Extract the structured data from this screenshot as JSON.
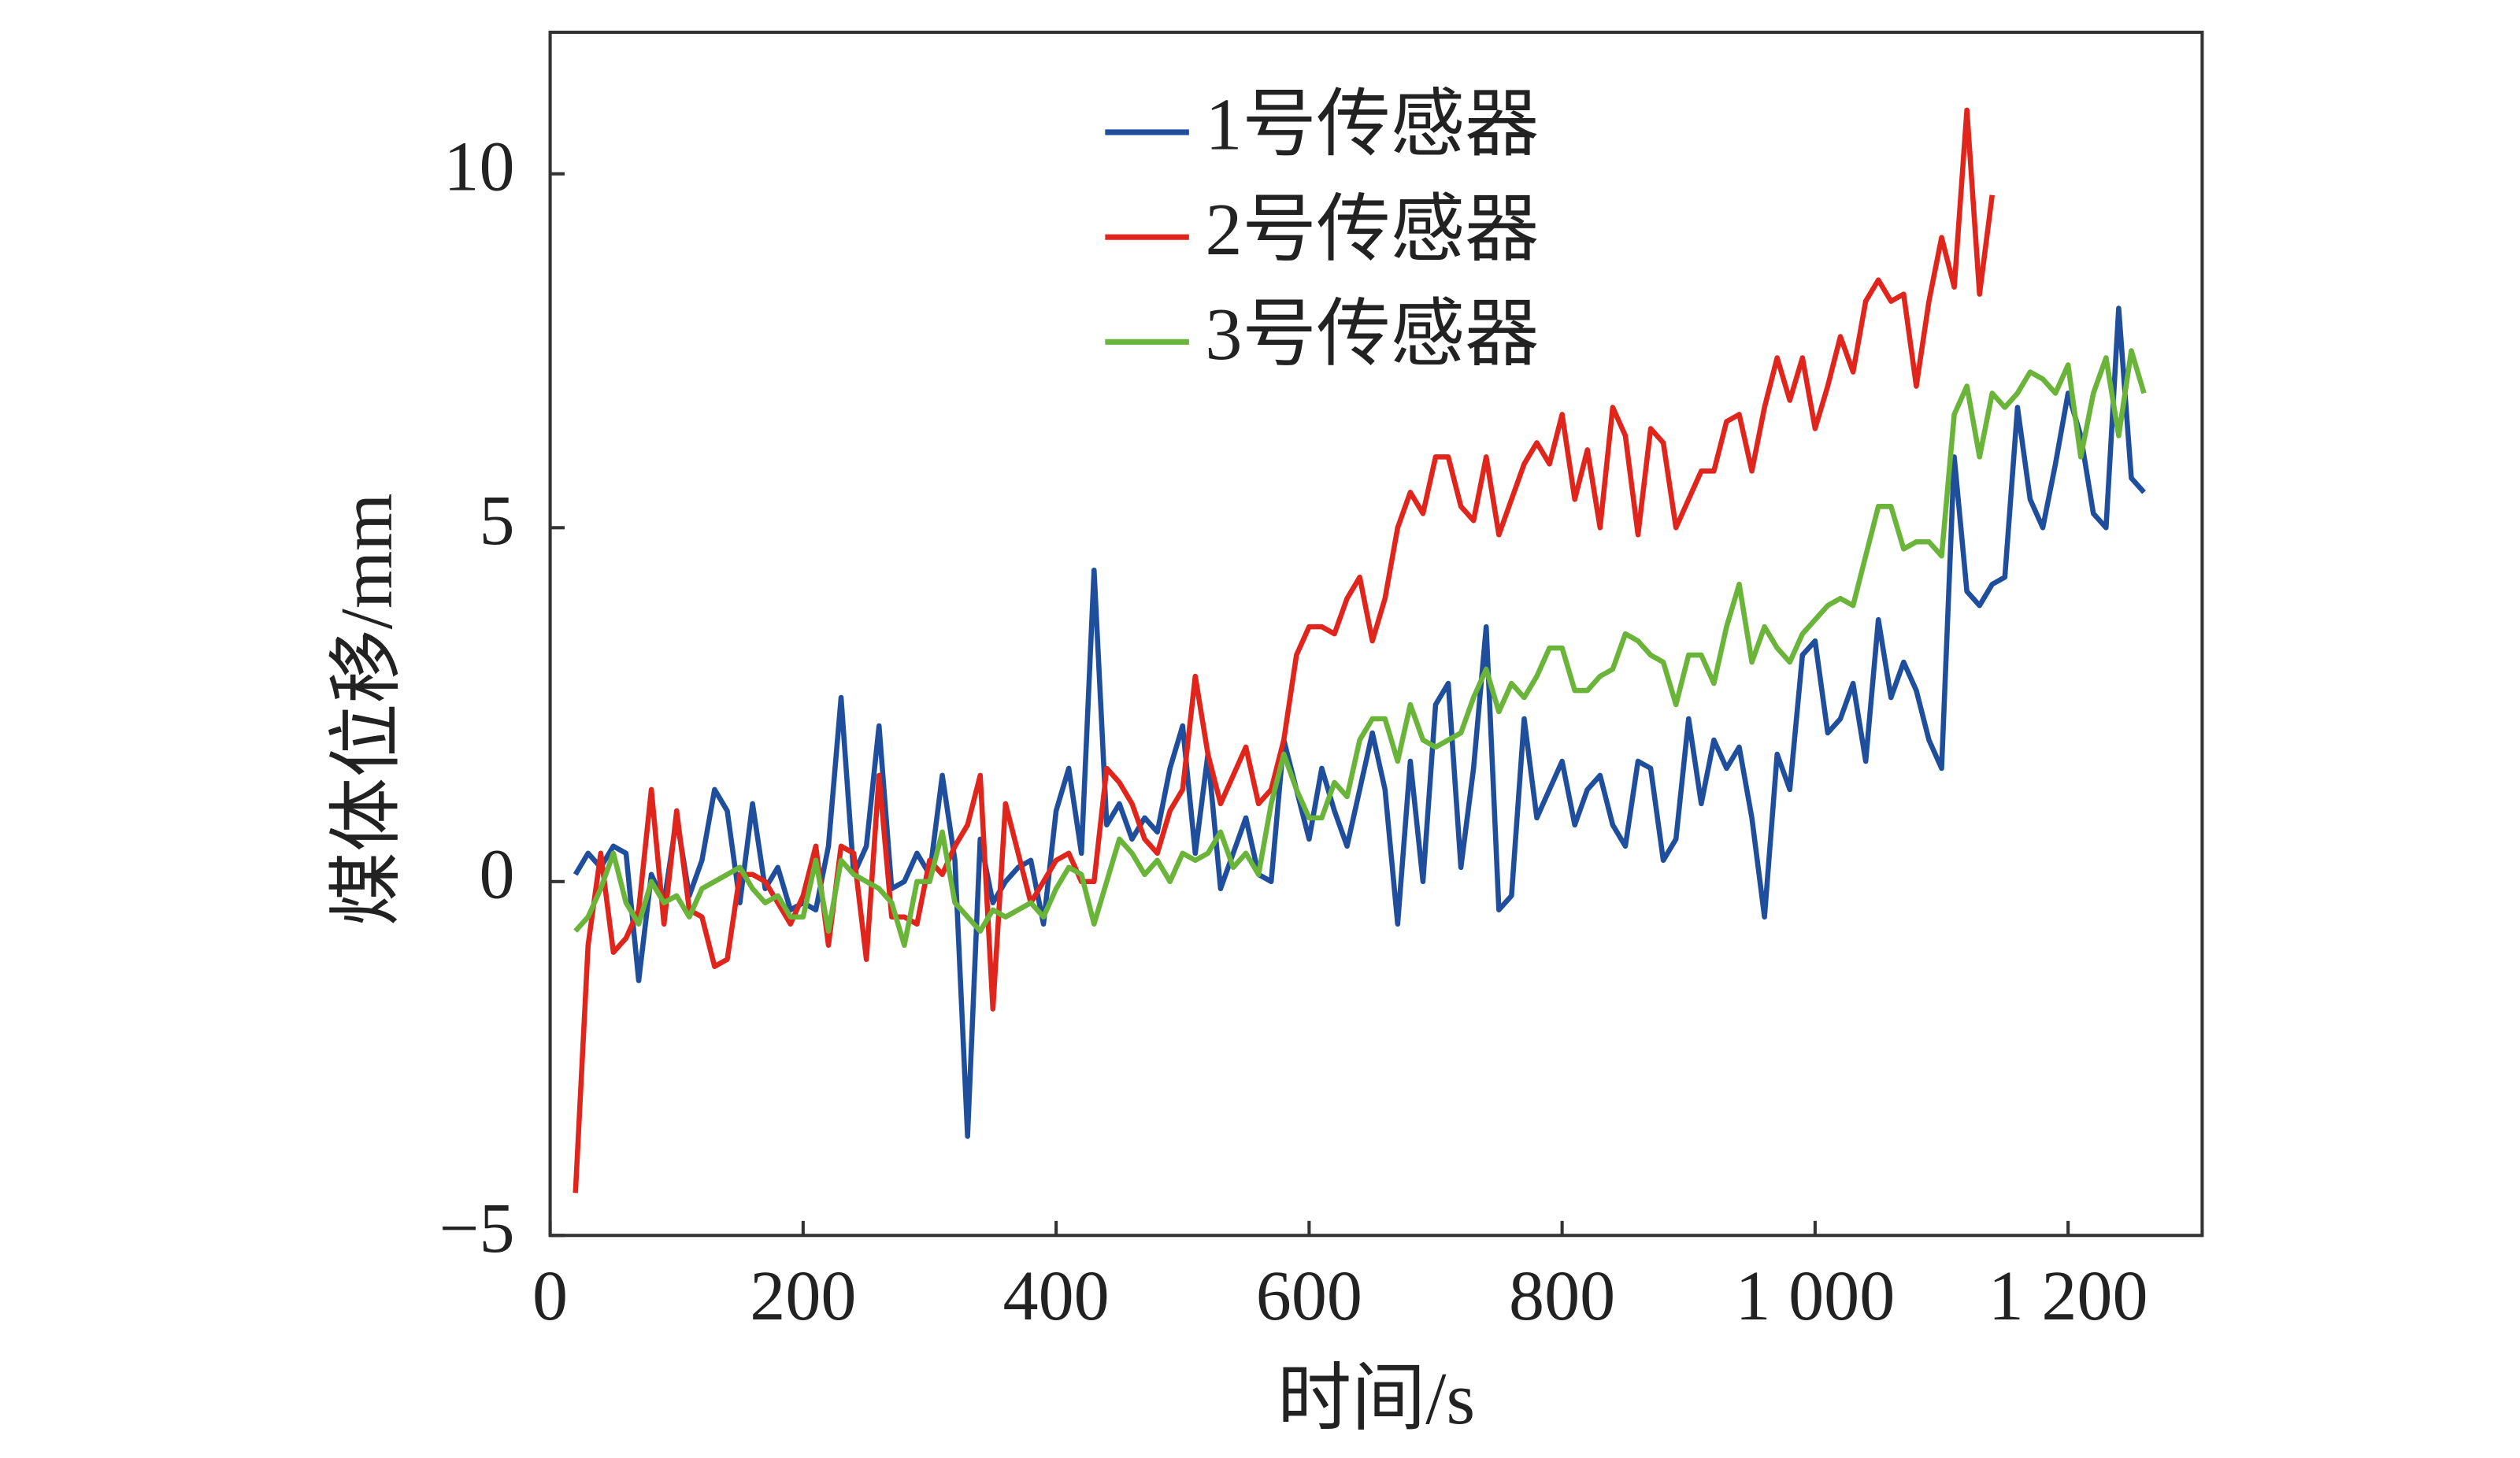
{
  "chart_data": {
    "type": "line",
    "x_label": "时间/s",
    "y_label": "煤体位移/mm",
    "x": [
      20,
      30,
      40,
      50,
      60,
      70,
      80,
      90,
      100,
      110,
      120,
      130,
      140,
      150,
      160,
      170,
      180,
      190,
      200,
      210,
      220,
      230,
      240,
      250,
      260,
      270,
      280,
      290,
      300,
      310,
      320,
      330,
      340,
      350,
      360,
      370,
      380,
      390,
      400,
      410,
      420,
      430,
      440,
      450,
      460,
      470,
      480,
      490,
      500,
      510,
      520,
      530,
      540,
      550,
      560,
      570,
      580,
      590,
      600,
      610,
      620,
      630,
      640,
      650,
      660,
      670,
      680,
      690,
      700,
      710,
      720,
      730,
      740,
      750,
      760,
      770,
      780,
      790,
      800,
      810,
      820,
      830,
      840,
      850,
      860,
      870,
      880,
      890,
      900,
      910,
      920,
      930,
      940,
      950,
      960,
      970,
      980,
      990,
      1000,
      1010,
      1020,
      1030,
      1040,
      1050,
      1060,
      1070,
      1080,
      1090,
      1100,
      1110,
      1120,
      1130,
      1140,
      1150,
      1160,
      1170,
      1180,
      1190,
      1200,
      1210,
      1220,
      1230,
      1240,
      1250,
      1260
    ],
    "series": [
      {
        "name": "1号传感器",
        "color": "#1f4e9c",
        "values": [
          0.1,
          0.4,
          0.2,
          0.5,
          0.4,
          -1.4,
          0.1,
          -0.3,
          0.9,
          -0.2,
          0.3,
          1.3,
          1.0,
          -0.3,
          1.1,
          -0.1,
          0.2,
          -0.4,
          -0.3,
          -0.4,
          0.5,
          2.6,
          0.1,
          0.5,
          2.2,
          -0.1,
          0.0,
          0.4,
          0.1,
          1.5,
          0.3,
          -3.6,
          0.6,
          -0.3,
          0.0,
          0.2,
          0.3,
          -0.6,
          1.0,
          1.6,
          0.4,
          4.4,
          0.8,
          1.1,
          0.6,
          0.9,
          0.7,
          1.6,
          2.2,
          0.4,
          1.8,
          -0.1,
          0.4,
          0.9,
          0.1,
          0.0,
          2.0,
          1.3,
          0.6,
          1.6,
          1.0,
          0.5,
          1.3,
          2.1,
          1.3,
          -0.6,
          1.7,
          0.0,
          2.5,
          2.8,
          0.2,
          1.6,
          3.6,
          -0.4,
          -0.2,
          2.3,
          0.9,
          1.3,
          1.7,
          0.8,
          1.3,
          1.5,
          0.8,
          0.5,
          1.7,
          1.6,
          0.3,
          0.6,
          2.3,
          1.1,
          2.0,
          1.6,
          1.9,
          0.9,
          -0.5,
          1.8,
          1.3,
          3.2,
          3.4,
          2.1,
          2.3,
          2.8,
          1.7,
          3.7,
          2.6,
          3.1,
          2.7,
          2.0,
          1.6,
          6.0,
          4.1,
          3.9,
          4.2,
          4.3,
          6.7,
          5.4,
          5.0,
          5.9,
          6.9,
          6.3,
          5.2,
          5.0,
          8.1,
          5.7,
          5.5
        ]
      },
      {
        "name": "2号传感器",
        "color": "#e0261c",
        "values": [
          -4.4,
          -0.9,
          0.4,
          -1.0,
          -0.8,
          -0.4,
          1.3,
          -0.6,
          1.0,
          -0.4,
          -0.5,
          -1.2,
          -1.1,
          0.1,
          0.1,
          0.0,
          -0.3,
          -0.6,
          -0.2,
          0.5,
          -0.9,
          0.5,
          0.4,
          -1.1,
          1.5,
          -0.5,
          -0.5,
          -0.6,
          0.3,
          0.1,
          0.5,
          0.8,
          1.5,
          -1.8,
          1.1,
          0.4,
          -0.3,
          0.0,
          0.3,
          0.4,
          0.0,
          0.0,
          1.6,
          1.4,
          1.1,
          0.6,
          0.4,
          1.0,
          1.3,
          2.9,
          1.8,
          1.1,
          1.5,
          1.9,
          1.1,
          1.3,
          2.0,
          3.2,
          3.6,
          3.6,
          3.5,
          4.0,
          4.3,
          3.4,
          4.0,
          5.0,
          5.5,
          5.2,
          6.0,
          6.0,
          5.3,
          5.1,
          6.0,
          4.9,
          5.4,
          5.9,
          6.2,
          5.9,
          6.6,
          5.4,
          6.1,
          5.0,
          6.7,
          6.3,
          4.9,
          6.4,
          6.2,
          5.0,
          5.4,
          5.8,
          5.8,
          6.5,
          6.6,
          5.8,
          6.7,
          7.4,
          6.8,
          7.4,
          6.4,
          7.0,
          7.7,
          7.2,
          8.2,
          8.5,
          8.2,
          8.3,
          7.0,
          8.2,
          9.1,
          8.4,
          10.9,
          8.3,
          9.7,
          null,
          null,
          null,
          null,
          null,
          null,
          null,
          null,
          null,
          null,
          null,
          null
        ]
      },
      {
        "name": "3号传感器",
        "color": "#6ab43a",
        "values": [
          -0.7,
          -0.5,
          -0.1,
          0.4,
          -0.3,
          -0.6,
          0.0,
          -0.3,
          -0.2,
          -0.5,
          -0.1,
          0.0,
          0.1,
          0.2,
          -0.1,
          -0.3,
          -0.2,
          -0.5,
          -0.5,
          0.3,
          -0.7,
          0.3,
          0.1,
          0.0,
          -0.1,
          -0.3,
          -0.9,
          0.0,
          0.0,
          0.7,
          -0.3,
          -0.5,
          -0.7,
          -0.4,
          -0.5,
          -0.4,
          -0.3,
          -0.5,
          -0.1,
          0.2,
          0.1,
          -0.6,
          0.0,
          0.6,
          0.4,
          0.1,
          0.3,
          0.0,
          0.4,
          0.3,
          0.4,
          0.7,
          0.2,
          0.4,
          0.1,
          1.1,
          1.8,
          1.3,
          0.9,
          0.9,
          1.4,
          1.2,
          2.0,
          2.3,
          2.3,
          1.7,
          2.5,
          2.0,
          1.9,
          2.0,
          2.1,
          2.6,
          3.0,
          2.4,
          2.8,
          2.6,
          2.9,
          3.3,
          3.3,
          2.7,
          2.7,
          2.9,
          3.0,
          3.5,
          3.4,
          3.2,
          3.1,
          2.5,
          3.2,
          3.2,
          2.8,
          3.6,
          4.2,
          3.1,
          3.6,
          3.3,
          3.1,
          3.5,
          3.7,
          3.9,
          4.0,
          3.9,
          4.6,
          5.3,
          5.3,
          4.7,
          4.8,
          4.8,
          4.6,
          6.6,
          7.0,
          6.0,
          6.9,
          6.7,
          6.9,
          7.2,
          7.1,
          6.9,
          7.3,
          6.0,
          6.9,
          7.4,
          6.3,
          7.5,
          6.9
        ]
      }
    ],
    "xlim": [
      0,
      1306
    ],
    "ylim": [
      -5,
      12
    ],
    "xticks": [
      0,
      200,
      400,
      600,
      800,
      {
        "value": 1000,
        "label": "1 000"
      },
      {
        "value": 1200,
        "label": "1 200"
      }
    ],
    "yticks": [
      {
        "value": -5,
        "label": "−5"
      },
      0,
      5,
      10
    ],
    "legend": "upper center"
  }
}
